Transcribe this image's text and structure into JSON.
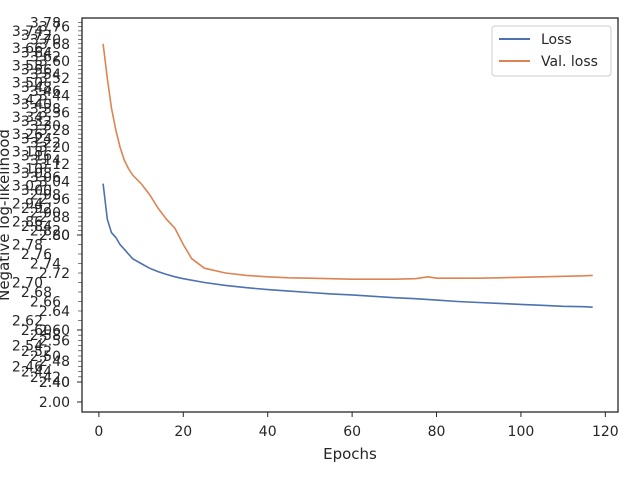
{
  "chart_data": {
    "type": "line",
    "xlabel": "Epochs",
    "ylabel": "Negative log-likelihood",
    "xlim": [
      -4,
      123
    ],
    "ylim": [
      1.9,
      3.8
    ],
    "x_ticks": [
      0,
      20,
      40,
      60,
      80,
      100,
      120
    ],
    "y_ticks_readable": [
      "2.00",
      "2.40",
      "2.60",
      "2.80"
    ],
    "legend_position": "top-right",
    "grid": false,
    "series": [
      {
        "name": "Loss",
        "color": "#4c72b0",
        "x": [
          1,
          2,
          3,
          4,
          5,
          6,
          8,
          10,
          12,
          14,
          16,
          18,
          20,
          25,
          30,
          35,
          40,
          45,
          50,
          55,
          60,
          65,
          70,
          75,
          80,
          85,
          90,
          95,
          100,
          105,
          110,
          115,
          117
        ],
        "y": [
          3.03,
          2.87,
          2.81,
          2.795,
          2.78,
          2.77,
          2.75,
          2.74,
          2.73,
          2.723,
          2.717,
          2.712,
          2.708,
          2.7,
          2.694,
          2.689,
          2.685,
          2.682,
          2.679,
          2.676,
          2.674,
          2.671,
          2.668,
          2.666,
          2.663,
          2.66,
          2.658,
          2.656,
          2.654,
          2.652,
          2.65,
          2.649,
          2.648
        ]
      },
      {
        "name": "Val. loss",
        "color": "#dd8452",
        "x": [
          1,
          2,
          3,
          4,
          5,
          6,
          7,
          8,
          10,
          12,
          14,
          16,
          18,
          20,
          22,
          25,
          30,
          35,
          40,
          45,
          50,
          55,
          60,
          65,
          70,
          75,
          78,
          80,
          85,
          90,
          95,
          100,
          105,
          110,
          115,
          117
        ],
        "y": [
          3.68,
          3.52,
          3.38,
          3.28,
          3.2,
          3.14,
          3.1,
          3.07,
          3.03,
          2.98,
          2.92,
          2.87,
          2.83,
          2.78,
          2.75,
          2.73,
          2.72,
          2.715,
          2.712,
          2.71,
          2.709,
          2.708,
          2.707,
          2.707,
          2.707,
          2.708,
          2.712,
          2.709,
          2.709,
          2.709,
          2.71,
          2.711,
          2.712,
          2.713,
          2.714,
          2.715
        ]
      }
    ]
  }
}
